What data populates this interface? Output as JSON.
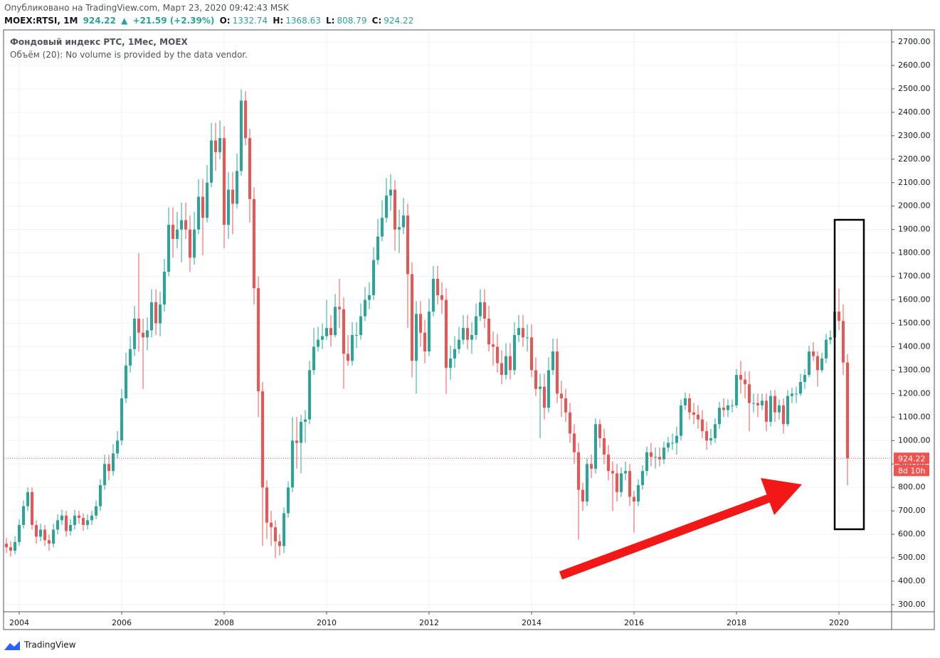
{
  "header": {
    "published": "Опубликовано на TradingView.com, Март 23, 2020 09:42:43 MSK",
    "symbol": "MOEX:RTSI, 1M",
    "change": "+21.59 (+2.39%)",
    "ohlc_labels": [
      "O:",
      "H:",
      "L:",
      "C:"
    ],
    "volume_note": "Объём (20): No volume is provided by the data vendor.",
    "countdown": "8d 10h",
    "brand": "TradingView"
  },
  "chart_data": {
    "type": "candlestick",
    "title": "Фондовый индекс РТС, 1Мес, MOEX",
    "up_color": "#26a69a",
    "down_color": "#ef5350",
    "grid": true,
    "xlim": [
      2003.694,
      2021.028
    ],
    "xticks": [
      2004,
      2006,
      2008,
      2010,
      2012,
      2014,
      2016,
      2018,
      2020
    ],
    "ylim": [
      269.7,
      2751.6
    ],
    "yticks": [
      {
        "value": 300,
        "label": "300.00"
      },
      {
        "value": 400,
        "label": "400.00"
      },
      {
        "value": 500,
        "label": "500.00"
      },
      {
        "value": 600,
        "label": "600.00"
      },
      {
        "value": 700,
        "label": "700.00"
      },
      {
        "value": 800,
        "label": "800.00"
      },
      {
        "value": 900,
        "label": "900.00"
      },
      {
        "value": 1000,
        "label": "1000.00"
      },
      {
        "value": 1100,
        "label": "1100.00"
      },
      {
        "value": 1200,
        "label": "1200.00"
      },
      {
        "value": 1300,
        "label": "1300.00"
      },
      {
        "value": 1400,
        "label": "1400.00"
      },
      {
        "value": 1500,
        "label": "1500.00"
      },
      {
        "value": 1600,
        "label": "1600.00"
      },
      {
        "value": 1700,
        "label": "1700.00"
      },
      {
        "value": 1800,
        "label": "1800.00"
      },
      {
        "value": 1900,
        "label": "1900.00"
      },
      {
        "value": 2000,
        "label": "2000.00"
      },
      {
        "value": 2100,
        "label": "2100.00"
      },
      {
        "value": 2200,
        "label": "2200.00"
      },
      {
        "value": 2300,
        "label": "2300.00"
      },
      {
        "value": 2400,
        "label": "2400.00"
      },
      {
        "value": 2500,
        "label": "2500.00"
      },
      {
        "value": 2600,
        "label": "2600.00"
      },
      {
        "value": 2700,
        "label": "2700.00"
      }
    ],
    "x": [
      2003.75,
      2003.833,
      2003.917,
      2004,
      2004.083,
      2004.167,
      2004.25,
      2004.333,
      2004.417,
      2004.5,
      2004.583,
      2004.667,
      2004.75,
      2004.833,
      2004.917,
      2005,
      2005.083,
      2005.167,
      2005.25,
      2005.333,
      2005.417,
      2005.5,
      2005.583,
      2005.667,
      2005.75,
      2005.833,
      2005.917,
      2006,
      2006.083,
      2006.167,
      2006.25,
      2006.333,
      2006.417,
      2006.5,
      2006.583,
      2006.667,
      2006.75,
      2006.833,
      2006.917,
      2007,
      2007.083,
      2007.167,
      2007.25,
      2007.333,
      2007.417,
      2007.5,
      2007.583,
      2007.667,
      2007.75,
      2007.833,
      2007.917,
      2008,
      2008.083,
      2008.167,
      2008.25,
      2008.333,
      2008.417,
      2008.5,
      2008.583,
      2008.667,
      2008.75,
      2008.833,
      2008.917,
      2009,
      2009.083,
      2009.167,
      2009.25,
      2009.333,
      2009.417,
      2009.5,
      2009.583,
      2009.667,
      2009.75,
      2009.833,
      2009.917,
      2010,
      2010.083,
      2010.167,
      2010.25,
      2010.333,
      2010.417,
      2010.5,
      2010.583,
      2010.667,
      2010.75,
      2010.833,
      2010.917,
      2011,
      2011.083,
      2011.167,
      2011.25,
      2011.333,
      2011.417,
      2011.5,
      2011.583,
      2011.667,
      2011.75,
      2011.833,
      2011.917,
      2012,
      2012.083,
      2012.167,
      2012.25,
      2012.333,
      2012.417,
      2012.5,
      2012.583,
      2012.667,
      2012.75,
      2012.833,
      2012.917,
      2013,
      2013.083,
      2013.167,
      2013.25,
      2013.333,
      2013.417,
      2013.5,
      2013.583,
      2013.667,
      2013.75,
      2013.833,
      2013.917,
      2014,
      2014.083,
      2014.167,
      2014.25,
      2014.333,
      2014.417,
      2014.5,
      2014.583,
      2014.667,
      2014.75,
      2014.833,
      2014.917,
      2015,
      2015.083,
      2015.167,
      2015.25,
      2015.333,
      2015.417,
      2015.5,
      2015.583,
      2015.667,
      2015.75,
      2015.833,
      2015.917,
      2016,
      2016.083,
      2016.167,
      2016.25,
      2016.333,
      2016.417,
      2016.5,
      2016.583,
      2016.667,
      2016.75,
      2016.833,
      2016.917,
      2017,
      2017.083,
      2017.167,
      2017.25,
      2017.333,
      2017.417,
      2017.5,
      2017.583,
      2017.667,
      2017.75,
      2017.833,
      2017.917,
      2018,
      2018.083,
      2018.167,
      2018.25,
      2018.333,
      2018.417,
      2018.5,
      2018.583,
      2018.667,
      2018.75,
      2018.833,
      2018.917,
      2019,
      2019.083,
      2019.167,
      2019.25,
      2019.333,
      2019.417,
      2019.5,
      2019.583,
      2019.667,
      2019.75,
      2019.833,
      2019.917,
      2020,
      2020.083,
      2020.167
    ],
    "open": [
      560,
      545,
      530,
      567,
      640,
      720,
      780,
      640,
      590,
      620,
      575,
      560,
      620,
      660,
      680,
      614,
      640,
      680,
      670,
      640,
      660,
      680,
      720,
      810,
      900,
      870,
      945,
      1000,
      1180,
      1320,
      1390,
      1520,
      1460,
      1440,
      1470,
      1590,
      1500,
      1580,
      1720,
      1920,
      1860,
      1900,
      1940,
      1900,
      1780,
      1900,
      2040,
      1950,
      2100,
      2280,
      2230,
      2290,
      1920,
      2070,
      2010,
      2150,
      2450,
      2290,
      2030,
      1650,
      1210,
      800,
      650,
      630,
      570,
      550,
      690,
      800,
      1000,
      990,
      1080,
      1090,
      1300,
      1400,
      1430,
      1445,
      1480,
      1450,
      1570,
      1560,
      1370,
      1340,
      1450,
      1450,
      1530,
      1600,
      1620,
      1770,
      1870,
      1950,
      2045,
      2070,
      1900,
      1910,
      1960,
      1710,
      1340,
      1540,
      1460,
      1380,
      1550,
      1690,
      1620,
      1600,
      1310,
      1350,
      1390,
      1430,
      1480,
      1430,
      1450,
      1530,
      1590,
      1520,
      1410,
      1400,
      1330,
      1280,
      1360,
      1300,
      1450,
      1480,
      1440,
      1440,
      1300,
      1220,
      1230,
      1140,
      1300,
      1380,
      1200,
      1180,
      1120,
      1030,
      950,
      790,
      740,
      900,
      880,
      1070,
      1010,
      940,
      870,
      860,
      780,
      860,
      870,
      760,
      740,
      810,
      870,
      950,
      930,
      930,
      920,
      970,
      990,
      990,
      1020,
      1150,
      1180,
      1120,
      1110,
      1090,
      1040,
      1000,
      1010,
      1070,
      1140,
      1130,
      1150,
      1150,
      1280,
      1260,
      1240,
      1160,
      1160,
      1150,
      1170,
      1080,
      1190,
      1120,
      1150,
      1070,
      1190,
      1200,
      1200,
      1250,
      1280,
      1380,
      1360,
      1300,
      1350,
      1430,
      1440,
      1550,
      1510,
      1332.74
    ],
    "high": [
      585,
      570,
      592,
      665,
      745,
      800,
      800,
      660,
      645,
      640,
      600,
      645,
      685,
      705,
      700,
      665,
      705,
      700,
      690,
      685,
      700,
      745,
      835,
      940,
      940,
      985,
      1040,
      1220,
      1375,
      1445,
      1575,
      1800,
      1520,
      1525,
      1645,
      1645,
      1635,
      1775,
      1995,
      1995,
      1975,
      2015,
      2015,
      1960,
      1975,
      2115,
      2115,
      2175,
      2355,
      2355,
      2365,
      2340,
      2145,
      2145,
      2225,
      2498,
      2490,
      2330,
      2080,
      1700,
      1250,
      830,
      700,
      660,
      600,
      715,
      825,
      1100,
      1100,
      1110,
      1130,
      1340,
      1480,
      1485,
      1500,
      1600,
      1535,
      1625,
      1690,
      1610,
      1450,
      1505,
      1505,
      1585,
      1655,
      1675,
      1825,
      1945,
      2025,
      2120,
      2136,
      2110,
      1985,
      2035,
      2010,
      1760,
      1595,
      1595,
      1515,
      1605,
      1745,
      1745,
      1675,
      1650,
      1405,
      1445,
      1485,
      1535,
      1535,
      1505,
      1585,
      1645,
      1645,
      1575,
      1465,
      1455,
      1385,
      1415,
      1415,
      1505,
      1535,
      1535,
      1495,
      1495,
      1355,
      1285,
      1285,
      1355,
      1435,
      1435,
      1255,
      1220,
      1160,
      1070,
      990,
      820,
      925,
      940,
      1095,
      1090,
      1050,
      980,
      910,
      900,
      885,
      910,
      900,
      785,
      835,
      895,
      975,
      990,
      970,
      970,
      995,
      1015,
      1030,
      1060,
      1175,
      1205,
      1200,
      1160,
      1150,
      1130,
      1080,
      1050,
      1095,
      1165,
      1180,
      1175,
      1175,
      1305,
      1340,
      1295,
      1295,
      1200,
      1200,
      1200,
      1200,
      1215,
      1215,
      1175,
      1180,
      1215,
      1225,
      1230,
      1285,
      1305,
      1405,
      1420,
      1380,
      1375,
      1455,
      1470,
      1570,
      1647,
      1580,
      1368.63
    ],
    "low": [
      520,
      505,
      515,
      550,
      625,
      700,
      620,
      560,
      570,
      550,
      530,
      545,
      600,
      640,
      590,
      595,
      620,
      645,
      615,
      620,
      640,
      665,
      700,
      790,
      830,
      850,
      925,
      980,
      1160,
      1290,
      1360,
      1380,
      1220,
      1385,
      1440,
      1450,
      1445,
      1550,
      1700,
      1780,
      1820,
      1760,
      1860,
      1720,
      1750,
      1880,
      1790,
      1930,
      2080,
      2150,
      2200,
      1820,
      1860,
      1880,
      1990,
      2130,
      2260,
      1930,
      1580,
      1100,
      550,
      580,
      550,
      498,
      510,
      520,
      670,
      780,
      880,
      860,
      990,
      1070,
      1280,
      1380,
      1390,
      1430,
      1400,
      1440,
      1480,
      1220,
      1320,
      1320,
      1395,
      1430,
      1510,
      1560,
      1600,
      1750,
      1850,
      1930,
      1980,
      1810,
      1800,
      1880,
      1480,
      1270,
      1200,
      1400,
      1330,
      1360,
      1530,
      1580,
      1540,
      1200,
      1260,
      1310,
      1370,
      1410,
      1390,
      1370,
      1430,
      1510,
      1480,
      1380,
      1320,
      1290,
      1240,
      1260,
      1260,
      1280,
      1420,
      1400,
      1380,
      1270,
      1190,
      1010,
      1090,
      1120,
      1280,
      1160,
      1100,
      1080,
      990,
      900,
      578,
      700,
      720,
      840,
      860,
      970,
      900,
      830,
      700,
      740,
      760,
      830,
      720,
      607,
      720,
      790,
      850,
      890,
      880,
      890,
      900,
      950,
      960,
      940,
      1000,
      1130,
      1090,
      1070,
      1050,
      1010,
      960,
      980,
      990,
      1050,
      1100,
      1100,
      1120,
      1140,
      1200,
      1180,
      1040,
      1120,
      1100,
      1130,
      1040,
      1060,
      1080,
      1090,
      1030,
      1060,
      1160,
      1160,
      1190,
      1220,
      1270,
      1340,
      1230,
      1290,
      1330,
      1410,
      1430,
      1470,
      1280,
      808.79
    ],
    "close": [
      545,
      530,
      567,
      640,
      720,
      780,
      640,
      590,
      620,
      575,
      560,
      620,
      660,
      680,
      614,
      640,
      680,
      670,
      640,
      660,
      680,
      720,
      810,
      900,
      870,
      945,
      1000,
      1180,
      1320,
      1390,
      1520,
      1460,
      1440,
      1470,
      1590,
      1500,
      1580,
      1720,
      1920,
      1860,
      1900,
      1940,
      1900,
      1780,
      1900,
      2040,
      1950,
      2100,
      2280,
      2230,
      2290,
      1920,
      2070,
      2010,
      2150,
      2450,
      2290,
      2030,
      1650,
      1210,
      800,
      650,
      630,
      570,
      550,
      690,
      800,
      1000,
      990,
      1080,
      1090,
      1300,
      1400,
      1430,
      1445,
      1480,
      1450,
      1570,
      1560,
      1370,
      1340,
      1450,
      1450,
      1530,
      1600,
      1620,
      1770,
      1870,
      1950,
      2045,
      2070,
      1900,
      1910,
      1960,
      1710,
      1340,
      1540,
      1460,
      1380,
      1550,
      1690,
      1620,
      1600,
      1310,
      1350,
      1390,
      1430,
      1480,
      1430,
      1450,
      1530,
      1590,
      1520,
      1410,
      1400,
      1330,
      1280,
      1360,
      1300,
      1450,
      1480,
      1440,
      1440,
      1300,
      1220,
      1230,
      1140,
      1300,
      1380,
      1200,
      1180,
      1120,
      1030,
      950,
      790,
      740,
      900,
      880,
      1070,
      1010,
      940,
      870,
      860,
      780,
      860,
      870,
      760,
      740,
      810,
      870,
      950,
      930,
      930,
      920,
      970,
      990,
      990,
      1020,
      1150,
      1180,
      1120,
      1110,
      1090,
      1040,
      1000,
      1010,
      1070,
      1140,
      1130,
      1150,
      1150,
      1280,
      1260,
      1240,
      1160,
      1160,
      1150,
      1170,
      1080,
      1190,
      1120,
      1150,
      1070,
      1190,
      1200,
      1200,
      1250,
      1280,
      1380,
      1360,
      1300,
      1350,
      1430,
      1440,
      1550,
      1510,
      1332.74,
      924.22
    ]
  }
}
